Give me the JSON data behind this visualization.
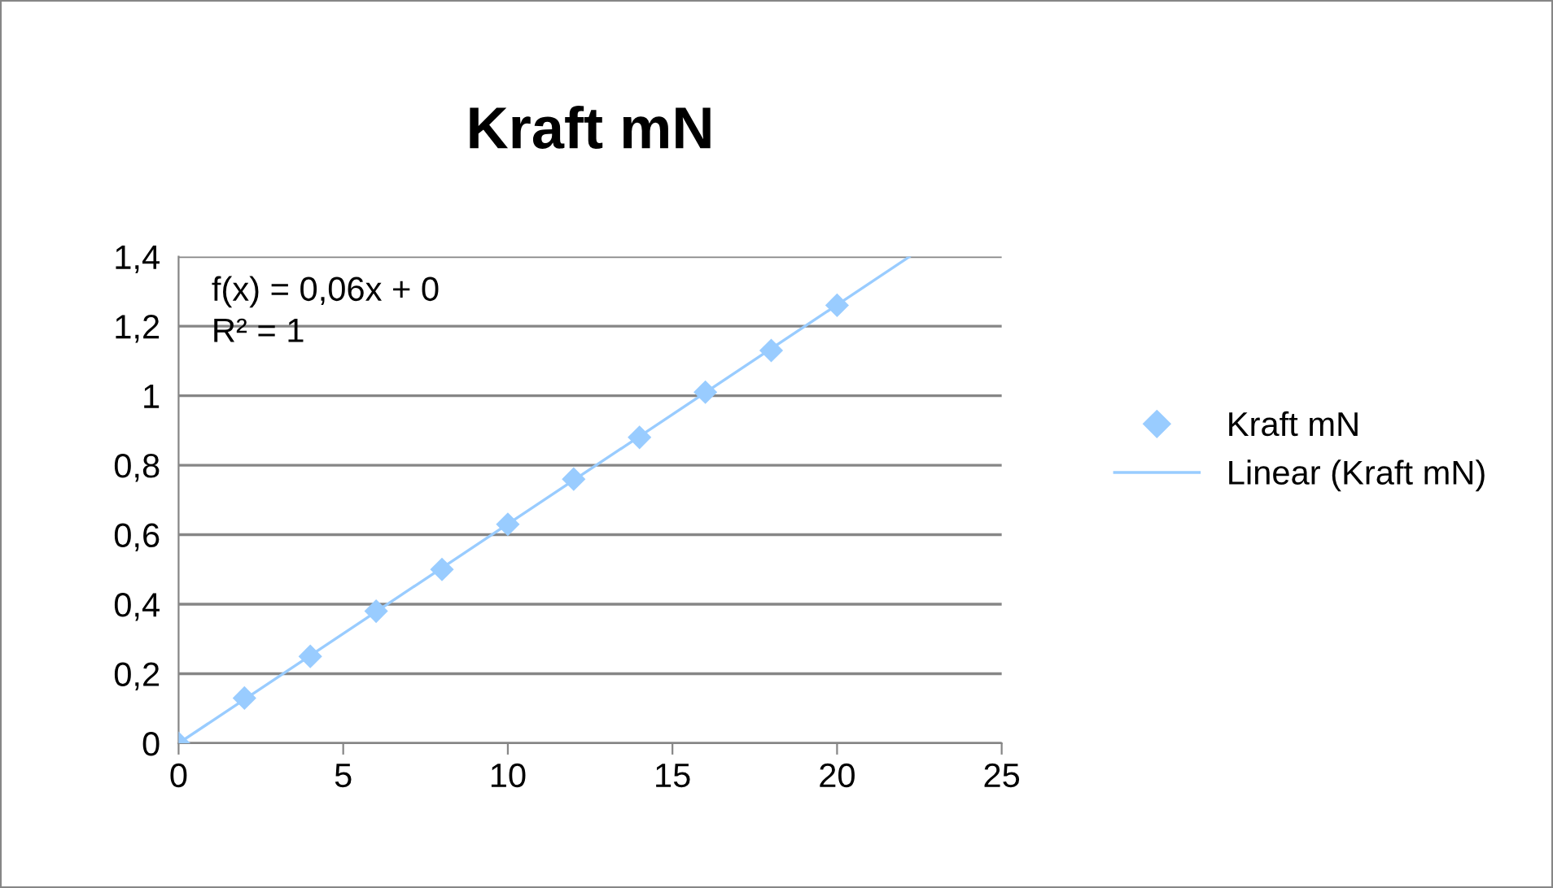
{
  "chart_data": {
    "type": "scatter",
    "title": "Kraft mN",
    "x": [
      0,
      2,
      4,
      6,
      8,
      10,
      12,
      14,
      16,
      18,
      20
    ],
    "series": [
      {
        "name": "Kraft mN",
        "marker": "diamond",
        "color": "#99ccff",
        "values": [
          0,
          0.13,
          0.25,
          0.38,
          0.5,
          0.63,
          0.76,
          0.88,
          1.01,
          1.13,
          1.26
        ]
      },
      {
        "name": "Linear (Kraft mN)",
        "type": "line",
        "color": "#99ccff",
        "x": [
          0,
          22.2
        ],
        "values": [
          0,
          1.4
        ]
      }
    ],
    "annotations": [
      "f(x) = 0,06x + 0",
      "R² = 1"
    ],
    "xlim": [
      0,
      25
    ],
    "xticks": [
      0,
      5,
      10,
      15,
      20,
      25
    ],
    "ylim": [
      0,
      1.4
    ],
    "yticks": [
      0,
      {
        "value": 0.2,
        "label": "0,2"
      },
      {
        "value": 0.4,
        "label": "0,4"
      },
      {
        "value": 0.6,
        "label": "0,6"
      },
      {
        "value": 0.8,
        "label": "0,8"
      },
      1,
      {
        "value": 1.2,
        "label": "1,2"
      },
      {
        "value": 1.4,
        "label": "1,4"
      }
    ],
    "grid": "y",
    "legend": "right",
    "line_style": "solid"
  }
}
